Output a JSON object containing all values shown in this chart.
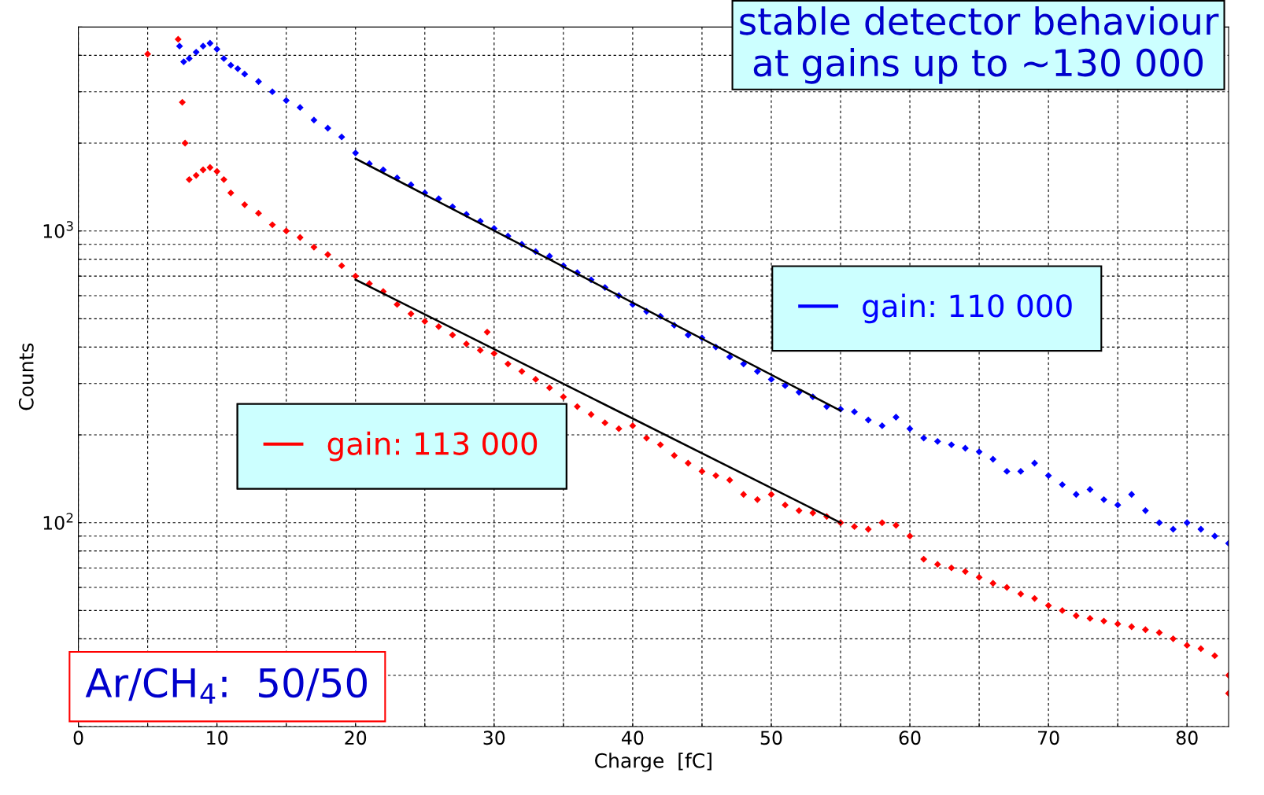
{
  "chart_data": {
    "type": "scatter",
    "title": "stable detector behaviour\nat gains up to ~130 000",
    "xlabel": "Charge  [fC]",
    "ylabel": "Counts",
    "xlim": [
      0,
      83
    ],
    "ylim": [
      20,
      5000
    ],
    "log": "y",
    "grid": true,
    "marker": "diamond",
    "legend": "center",
    "xticks": [
      0,
      {
        "value": 5,
        "label": null
      },
      10,
      {
        "value": 15,
        "label": null
      },
      20,
      {
        "value": 25,
        "label": null
      },
      30,
      {
        "value": 35,
        "label": null
      },
      40,
      {
        "value": 45,
        "label": null
      },
      50,
      {
        "value": 55,
        "label": null
      },
      60,
      {
        "value": 65,
        "label": null
      },
      70,
      {
        "value": 75,
        "label": null
      },
      80
    ],
    "yticks": [
      {
        "value": 20,
        "label": null
      },
      {
        "value": 30,
        "label": null
      },
      {
        "value": 40,
        "label": null
      },
      {
        "value": 50,
        "label": null
      },
      {
        "value": 60,
        "label": null
      },
      {
        "value": 70,
        "label": null
      },
      {
        "value": 80,
        "label": null
      },
      {
        "value": 90,
        "label": null
      },
      {
        "value": 100,
        "label": "10$^{2}$"
      },
      {
        "value": 200,
        "label": null
      },
      {
        "value": 300,
        "label": null
      },
      {
        "value": 400,
        "label": null
      },
      {
        "value": 500,
        "label": null
      },
      {
        "value": 600,
        "label": null
      },
      {
        "value": 700,
        "label": null
      },
      {
        "value": 800,
        "label": null
      },
      {
        "value": 900,
        "label": null
      },
      {
        "value": 1000,
        "label": "10$^{3}$"
      },
      {
        "value": 2000,
        "label": null
      },
      {
        "value": 3000,
        "label": null
      },
      {
        "value": 4000,
        "label": null
      },
      {
        "value": 5000,
        "label": null
      }
    ],
    "annotations": [
      "Ar/CH$_{4}$:  50/50"
    ],
    "series": [
      {
        "name": "gain: 110 000",
        "color": "#0000ff",
        "x": [
          7.3,
          7.6,
          8,
          8.5,
          9,
          9.5,
          10,
          10.5,
          11,
          11.5,
          12,
          13,
          14,
          15,
          16,
          17,
          18,
          19,
          20,
          21,
          22,
          23,
          24,
          25,
          26,
          27,
          28,
          29,
          30,
          31,
          32,
          33,
          34,
          35,
          36,
          37,
          38,
          39,
          40,
          41,
          42,
          43,
          44,
          45,
          46,
          47,
          48,
          49,
          50,
          51,
          52,
          53,
          54,
          55,
          56,
          57,
          58,
          59,
          60,
          61,
          62,
          63,
          64,
          65,
          66,
          67,
          68,
          69,
          70,
          71,
          72,
          73,
          74,
          75,
          76,
          77,
          78,
          79,
          80,
          81,
          82,
          83
        ],
        "values": [
          4300,
          3800,
          3900,
          4100,
          4300,
          4400,
          4200,
          3900,
          3700,
          3600,
          3450,
          3250,
          3000,
          2800,
          2650,
          2400,
          2250,
          2100,
          1850,
          1700,
          1620,
          1520,
          1440,
          1350,
          1290,
          1210,
          1140,
          1080,
          1020,
          960,
          900,
          850,
          820,
          760,
          720,
          680,
          640,
          600,
          560,
          530,
          510,
          475,
          440,
          430,
          400,
          370,
          350,
          330,
          310,
          295,
          280,
          270,
          250,
          245,
          240,
          225,
          215,
          230,
          210,
          195,
          190,
          185,
          180,
          175,
          165,
          150,
          150,
          160,
          145,
          135,
          125,
          130,
          120,
          115,
          125,
          110,
          100,
          95,
          100,
          95,
          90,
          85
        ]
      },
      {
        "name": "gain: 113 000",
        "color": "#ff0000",
        "x": [
          5,
          7.2,
          7.5,
          7.7,
          8,
          8.5,
          9,
          9.5,
          10,
          10.5,
          11,
          12,
          13,
          14,
          15,
          16,
          17,
          18,
          19,
          20,
          21,
          22,
          23,
          24,
          25,
          26,
          27,
          28,
          29,
          29.5,
          30,
          31,
          32,
          33,
          34,
          35,
          36,
          37,
          38,
          39,
          40,
          41,
          42,
          43,
          44,
          45,
          46,
          47,
          48,
          49,
          50,
          51,
          52,
          53,
          54,
          55,
          56,
          57,
          58,
          59,
          60,
          61,
          62,
          63,
          64,
          65,
          66,
          67,
          68,
          69,
          70,
          71,
          72,
          73,
          74,
          75,
          76,
          77,
          78,
          79,
          80,
          81,
          82,
          83,
          83
        ],
        "values": [
          4040,
          4540,
          2760,
          2000,
          1500,
          1550,
          1620,
          1650,
          1600,
          1500,
          1350,
          1230,
          1150,
          1050,
          1000,
          950,
          880,
          830,
          760,
          700,
          660,
          620,
          560,
          520,
          490,
          470,
          440,
          410,
          390,
          450,
          380,
          350,
          330,
          310,
          290,
          270,
          250,
          235,
          220,
          210,
          215,
          195,
          185,
          170,
          160,
          150,
          145,
          140,
          125,
          120,
          125,
          115,
          110,
          108,
          105,
          100,
          97,
          95,
          100,
          98,
          90,
          75,
          72,
          70,
          68,
          65,
          62,
          60,
          57,
          55,
          52,
          50,
          48,
          47,
          46,
          45,
          44,
          43,
          42,
          40,
          38,
          37,
          35,
          30,
          26
        ]
      },
      {
        "type": "line",
        "marker": "none",
        "color": "#000000",
        "x": [
          20,
          55
        ],
        "values": [
          1770,
          242
        ]
      },
      {
        "type": "line",
        "marker": "none",
        "color": "#000000",
        "x": [
          20,
          55
        ],
        "values": [
          681,
          100
        ]
      }
    ]
  }
}
